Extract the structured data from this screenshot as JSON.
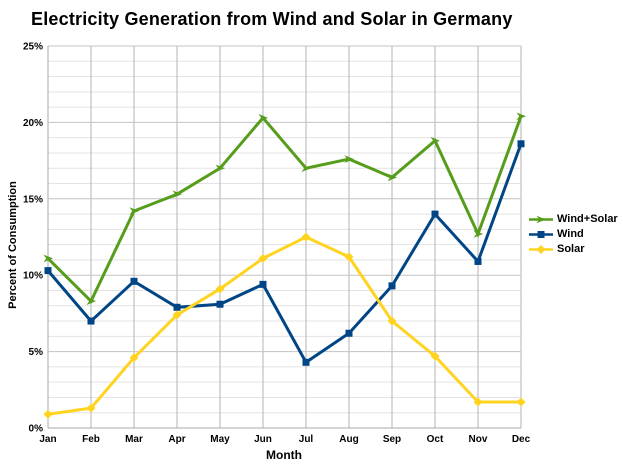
{
  "title": "Electricity Generation from Wind and Solar in Germany",
  "chart_data": {
    "type": "line",
    "title": "Electricity Generation from Wind and Solar in Germany",
    "xlabel": "Month",
    "ylabel": "Percent of Consumption",
    "ylim": [
      0,
      25
    ],
    "ytick_step": 5,
    "minor_grid_step": 1,
    "grid": true,
    "legend_position": "right",
    "ytick_labels": [
      "0%",
      "5%",
      "10%",
      "15%",
      "20%",
      "25%"
    ],
    "categories": [
      "Jan",
      "Feb",
      "Mar",
      "Apr",
      "May",
      "Jun",
      "Jul",
      "Aug",
      "Sep",
      "Oct",
      "Nov",
      "Dec"
    ],
    "series": [
      {
        "name": "Wind+Solar",
        "color": "#579D1C",
        "marker": "arrow-right",
        "values": [
          11.1,
          8.3,
          14.2,
          15.3,
          17.0,
          20.3,
          17.0,
          17.6,
          16.4,
          18.8,
          12.7,
          20.4
        ]
      },
      {
        "name": "Wind",
        "color": "#004586",
        "marker": "square",
        "values": [
          10.3,
          7.0,
          9.6,
          7.9,
          8.1,
          9.4,
          4.3,
          6.2,
          9.3,
          14.0,
          10.9,
          18.6
        ]
      },
      {
        "name": "Solar",
        "color": "#FFD320",
        "marker": "diamond",
        "values": [
          0.9,
          1.3,
          4.6,
          7.4,
          9.1,
          11.1,
          12.5,
          11.2,
          7.0,
          4.7,
          1.7,
          1.7
        ]
      }
    ]
  }
}
